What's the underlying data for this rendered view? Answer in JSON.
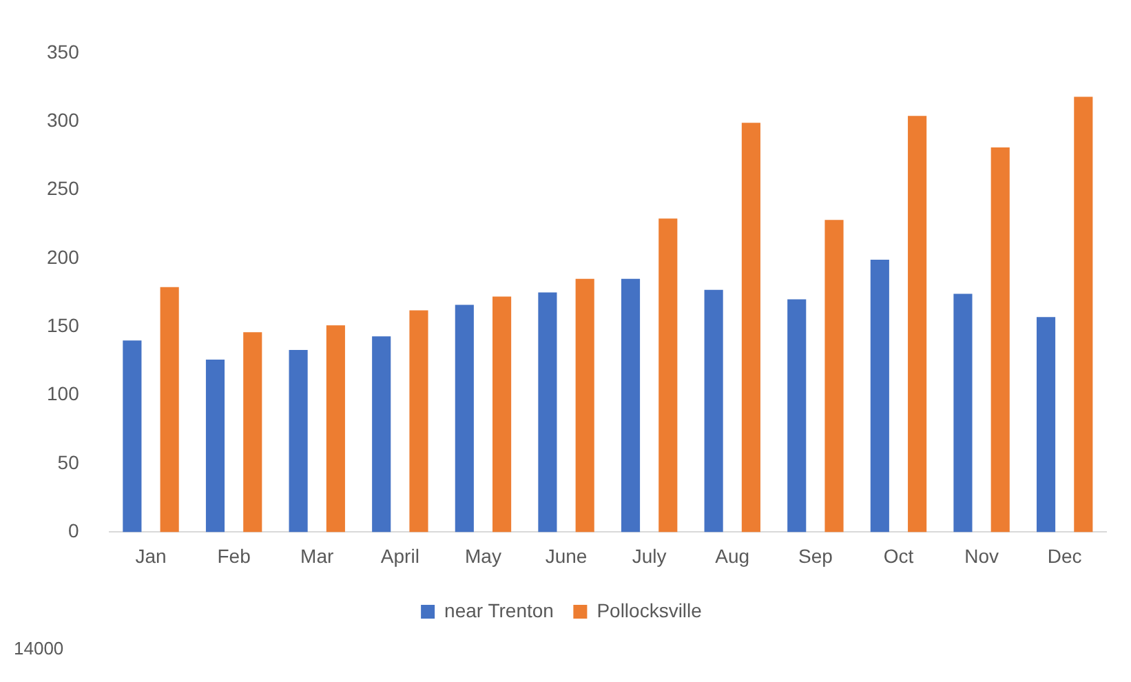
{
  "chart_data": {
    "type": "bar",
    "categories": [
      "Jan",
      "Feb",
      "Mar",
      "April",
      "May",
      "June",
      "July",
      "Aug",
      "Sep",
      "Oct",
      "Nov",
      "Dec"
    ],
    "series": [
      {
        "name": "near Trenton",
        "color": "#4472c4",
        "values": [
          140,
          126,
          133,
          143,
          166,
          175,
          185,
          177,
          170,
          199,
          174,
          157
        ]
      },
      {
        "name": "Pollocksville",
        "color": "#ed7d31",
        "values": [
          179,
          146,
          151,
          162,
          172,
          185,
          229,
          299,
          228,
          304,
          281,
          318
        ]
      }
    ],
    "ylim": [
      0,
      350
    ],
    "yticks": [
      0,
      50,
      100,
      150,
      200,
      250,
      300,
      350
    ],
    "grid": false,
    "legend": "bottom",
    "annotations": [
      "14000"
    ]
  }
}
